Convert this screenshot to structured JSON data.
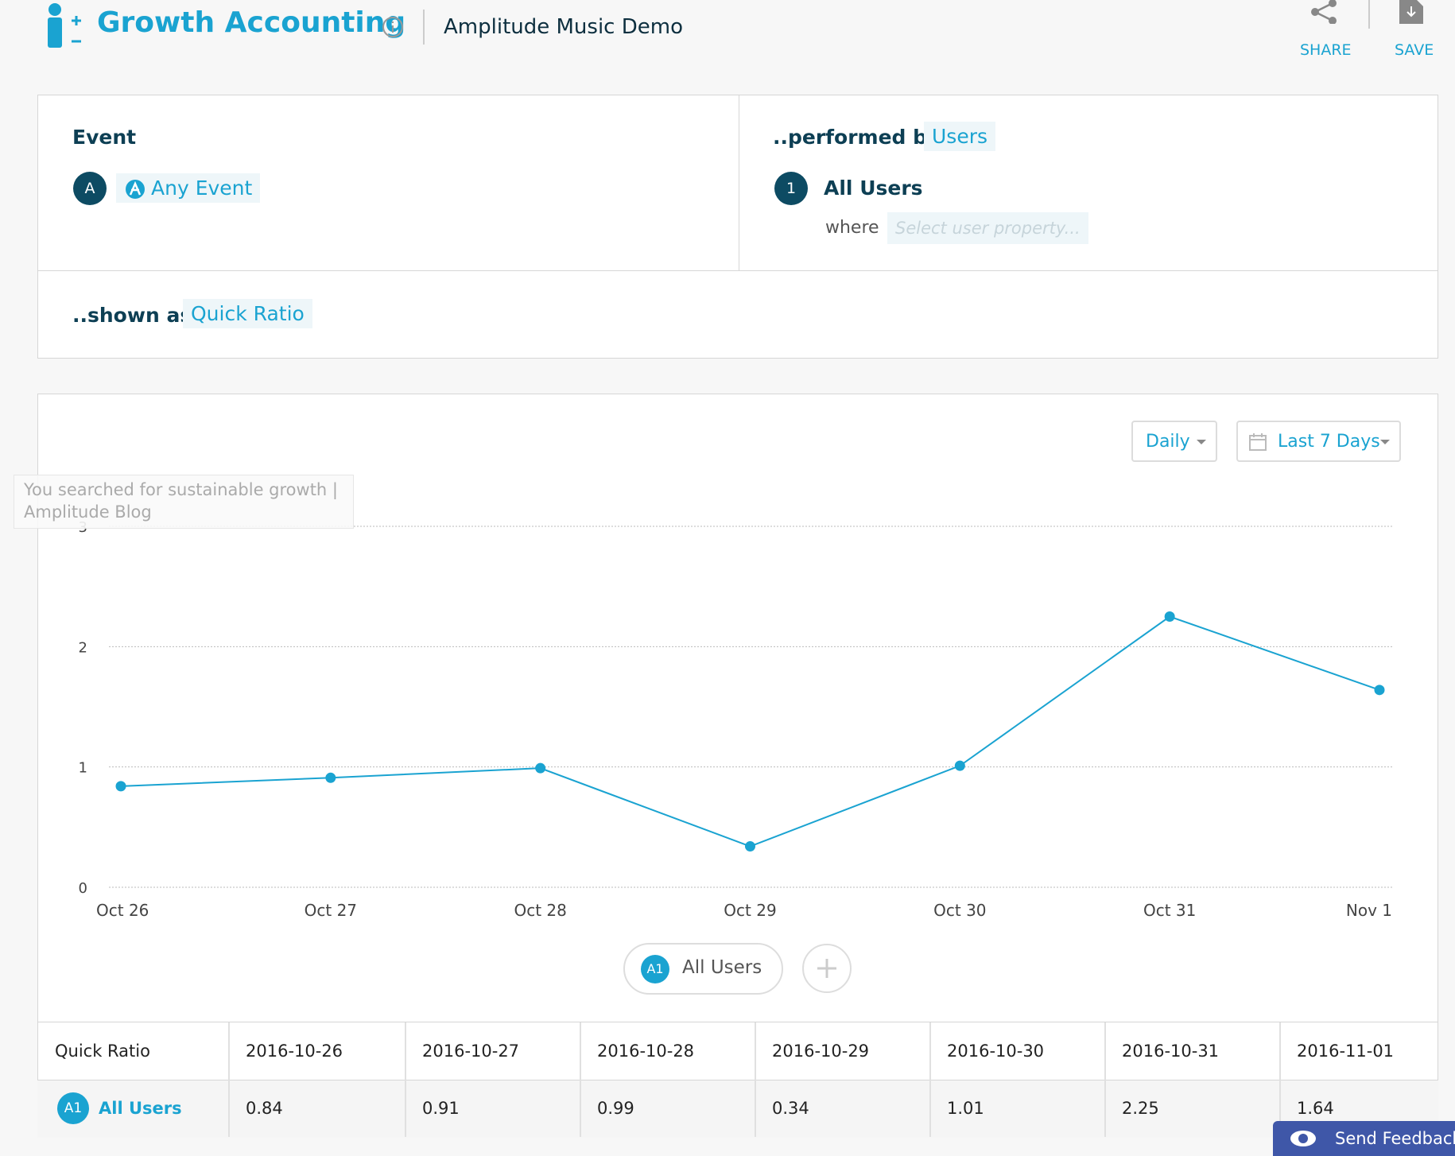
{
  "header": {
    "title": "Growth Accounting",
    "project": "Amplitude Music Demo",
    "share": "SHARE",
    "save": "SAVE"
  },
  "query": {
    "event_label": "Event",
    "event_badge": "A",
    "event": "Any Event",
    "performed_by": "..performed by",
    "users": "Users",
    "segment_badge": "1",
    "segment": "All Users",
    "where": "where",
    "property_placeholder": "Select user property...",
    "shown_as": "..shown as",
    "metric": "Quick Ratio"
  },
  "controls": {
    "interval": "Daily",
    "range": "Last 7 Days"
  },
  "tooltip": "You searched for sustainable growth | Amplitude Blog",
  "chart_data": {
    "type": "line",
    "categories": [
      "Oct 26",
      "Oct 27",
      "Oct 28",
      "Oct 29",
      "Oct 30",
      "Oct 31",
      "Nov 1"
    ],
    "series": [
      {
        "name": "All Users",
        "color": "#1aa3d1",
        "values": [
          0.84,
          0.91,
          0.99,
          0.34,
          1.01,
          2.25,
          1.64
        ]
      }
    ],
    "ylim": [
      0,
      3
    ],
    "yticks": [
      0,
      1,
      2,
      3
    ],
    "grid": true
  },
  "legend": {
    "badge": "A1"
  },
  "table": {
    "header": [
      "Quick Ratio",
      "2016-10-26",
      "2016-10-27",
      "2016-10-28",
      "2016-10-29",
      "2016-10-30",
      "2016-10-31",
      "2016-11-01"
    ],
    "rows": [
      {
        "badge": "A1",
        "label": "All Users",
        "cells": [
          "0.84",
          "0.91",
          "0.99",
          "0.34",
          "1.01",
          "2.25",
          "1.64"
        ]
      }
    ]
  },
  "feedback": "Send Feedback"
}
